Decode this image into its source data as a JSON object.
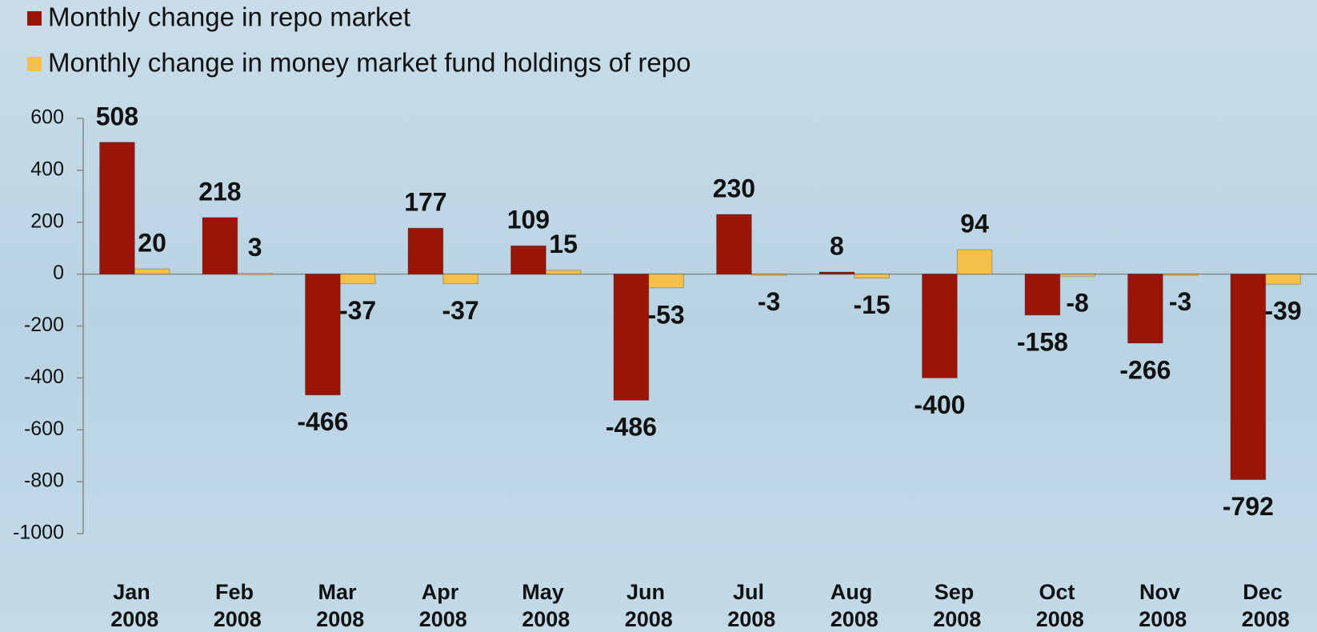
{
  "chart_data": {
    "type": "bar",
    "categories": [
      "Jan 2008",
      "Feb 2008",
      "Mar 2008",
      "Apr 2008",
      "May 2008",
      "Jun 2008",
      "Jul 2008",
      "Aug 2008",
      "Sep 2008",
      "Oct 2008",
      "Nov 2008",
      "Dec 2008"
    ],
    "series": [
      {
        "name": "Monthly change in repo market",
        "color": "#9b1408",
        "values": [
          508,
          218,
          -466,
          177,
          109,
          -486,
          230,
          8,
          -400,
          -158,
          -266,
          -792
        ]
      },
      {
        "name": "Monthly change in money market fund holdings of repo",
        "color": "#f5c04a",
        "values": [
          20,
          3,
          -37,
          -37,
          15,
          -53,
          -3,
          -15,
          94,
          -8,
          -3,
          -39
        ]
      }
    ],
    "ylim": [
      -1000,
      600
    ],
    "yticks": [
      -1000,
      -800,
      -600,
      -400,
      -200,
      0,
      200,
      400,
      600
    ],
    "legend": "top-left"
  }
}
